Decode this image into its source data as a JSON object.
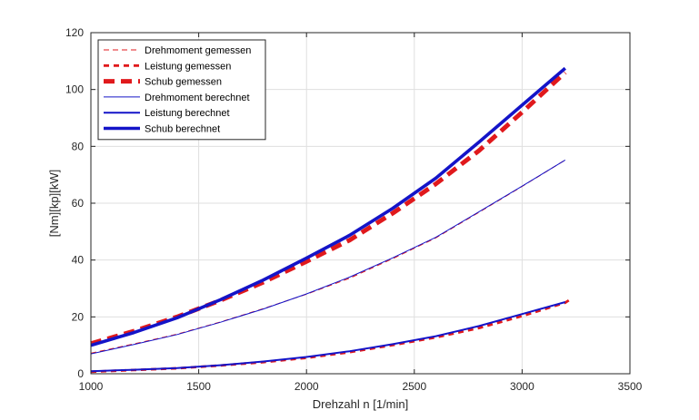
{
  "chart_data": {
    "type": "line",
    "xlabel": "Drehzahl n [1/min]",
    "ylabel": "[Nm][kp][kW]",
    "xlim": [
      1000,
      3500
    ],
    "ylim": [
      0,
      120
    ],
    "xticks": [
      1000,
      1500,
      2000,
      2500,
      3000,
      3500
    ],
    "yticks": [
      0,
      20,
      40,
      60,
      80,
      100,
      120
    ],
    "grid": true,
    "legend_position": "top-left",
    "series": [
      {
        "name": "Drehmoment gemessen",
        "color": "#e0191c",
        "style": "thin-dashed",
        "x": [
          1000,
          1200,
          1400,
          1600,
          1800,
          2000,
          2200,
          2400,
          2600,
          2800,
          3000,
          3200
        ],
        "y": [
          7.2,
          10.5,
          13.9,
          18.2,
          22.9,
          28.0,
          33.6,
          40.5,
          47.8,
          56.8,
          65.9,
          75.2
        ]
      },
      {
        "name": "Leistung gemessen",
        "color": "#e0191c",
        "style": "medium-dashed",
        "x": [
          1000,
          1200,
          1400,
          1600,
          1800,
          2000,
          2200,
          2400,
          2600,
          2800,
          3000,
          3200,
          3230
        ],
        "y": [
          0.7,
          1.3,
          1.9,
          2.9,
          4.1,
          5.6,
          7.6,
          10.1,
          12.8,
          16.1,
          20.3,
          25.0,
          26.5
        ]
      },
      {
        "name": "Schub gemessen",
        "color": "#e0191c",
        "style": "thick-dashed",
        "x": [
          1000,
          1200,
          1400,
          1600,
          1800,
          2000,
          2200,
          2400,
          2600,
          2800,
          3000,
          3200
        ],
        "y": [
          10.6,
          15.0,
          20.0,
          25.8,
          32.2,
          39.5,
          47.0,
          56.5,
          66.8,
          78.5,
          92.0,
          106.0
        ]
      },
      {
        "name": "Drehmoment berechnet",
        "color": "#1414c8",
        "style": "thin-solid",
        "x": [
          1000,
          1200,
          1400,
          1600,
          1800,
          2000,
          2200,
          2400,
          2600,
          2800,
          3000,
          3200
        ],
        "y": [
          7.0,
          10.3,
          13.8,
          18.1,
          22.8,
          28.1,
          34.0,
          40.8,
          48.0,
          57.0,
          66.0,
          75.2
        ]
      },
      {
        "name": "Leistung berechnet",
        "color": "#1414c8",
        "style": "medium-solid",
        "x": [
          1000,
          1200,
          1400,
          1600,
          1800,
          2000,
          2200,
          2400,
          2600,
          2800,
          3000,
          3200
        ],
        "y": [
          0.9,
          1.4,
          2.0,
          3.0,
          4.3,
          5.9,
          7.9,
          10.4,
          13.2,
          16.8,
          21.0,
          25.2
        ]
      },
      {
        "name": "Schub berechnet",
        "color": "#1414c8",
        "style": "thick-solid",
        "x": [
          1000,
          1200,
          1400,
          1600,
          1800,
          2000,
          2200,
          2400,
          2600,
          2800,
          3000,
          3200
        ],
        "y": [
          10.0,
          14.5,
          19.7,
          26.0,
          33.0,
          40.7,
          48.7,
          58.2,
          68.8,
          81.5,
          94.5,
          107.5
        ]
      }
    ]
  }
}
